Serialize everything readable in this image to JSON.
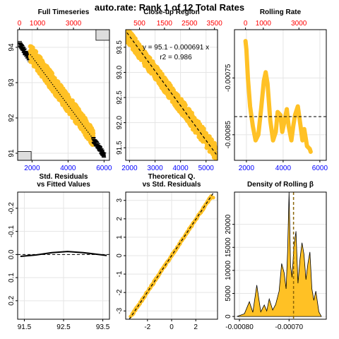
{
  "main_title": "auto.rate: Rank 1 of 12 Total Rates",
  "colors": {
    "points": "#FFC125",
    "fit_line": "#000000",
    "grid": "#E5E5E5",
    "top_axis": "#FF0000",
    "bottom_axis": "#0000FF",
    "gray_box": "#DDDDDD"
  },
  "chart_data": [
    {
      "id": "full_timeseries",
      "type": "scatter",
      "title": "Full Timeseries",
      "xlim": [
        1200,
        6300
      ],
      "ylim": [
        90.8,
        94.5
      ],
      "x_ticks": [
        2000,
        4000,
        6000
      ],
      "x_tick_labels": [
        "2000",
        "4000",
        "6000"
      ],
      "top_ticks": [
        0,
        1000,
        3000
      ],
      "top_tick_labels": [
        "0",
        "1000",
        "3000"
      ],
      "y_ticks": [
        91,
        92,
        93,
        94
      ],
      "y_tick_labels": [
        "91",
        "92",
        "93",
        "94"
      ],
      "series": [
        {
          "x_start": 1300,
          "x_end": 1900,
          "y_start": 94.1,
          "y_end": 93.65,
          "noise": 0.08,
          "style": "black-dashes"
        },
        {
          "x_start": 1900,
          "x_end": 5400,
          "y_start": 93.85,
          "y_end": 91.45,
          "noise": 0.25,
          "style": "orange-points"
        },
        {
          "x_start": 5400,
          "x_end": 6000,
          "y_start": 91.4,
          "y_end": 90.95,
          "noise": 0.08,
          "style": "black-dashes"
        }
      ],
      "fit_line": {
        "x": [
          1900,
          5400
        ],
        "y": [
          93.8,
          91.4
        ],
        "style": "dotted"
      },
      "gray_boxes": [
        {
          "corner": "top-right",
          "x": [
            5550,
            6300
          ],
          "y": [
            94.2,
            94.5
          ]
        },
        {
          "corner": "bottom-left",
          "x": [
            1200,
            1950
          ],
          "y": [
            90.8,
            91.05
          ]
        }
      ]
    },
    {
      "id": "closeup_region",
      "type": "scatter",
      "title": "Close-up Region",
      "xlim": [
        1850,
        5450
      ],
      "ylim": [
        91.25,
        93.85
      ],
      "x_ticks": [
        2000,
        3000,
        4000,
        5000
      ],
      "x_tick_labels": [
        "2000",
        "3000",
        "4000",
        "5000"
      ],
      "top_ticks": [
        500,
        1500,
        2500,
        3500
      ],
      "top_tick_labels": [
        "500",
        "1500",
        "2500",
        "3500"
      ],
      "y_ticks": [
        91.5,
        92.0,
        92.5,
        93.0,
        93.5
      ],
      "y_tick_labels": [
        "91.5",
        "92.0",
        "92.5",
        "93.0",
        "93.5"
      ],
      "series": [
        {
          "x_start": 1900,
          "x_end": 5400,
          "y_start": 93.75,
          "y_end": 91.4,
          "noise": 0.15,
          "style": "orange-points"
        }
      ],
      "fit_line": {
        "x": [
          1900,
          5400
        ],
        "y": [
          93.79,
          91.37
        ],
        "style": "dashed"
      },
      "annotations": [
        "y = 95.1 - 0.000691 x",
        "r2 = 0.986"
      ]
    },
    {
      "id": "rolling_rate",
      "type": "line",
      "title": "Rolling Rate",
      "xlim": [
        1350,
        6350
      ],
      "ylim": [
        -0.000895,
        -0.000665
      ],
      "x_ticks": [
        2000,
        4000,
        6000
      ],
      "x_tick_labels": [
        "2000",
        "4000",
        "6000"
      ],
      "top_ticks": [
        0,
        1000,
        3000
      ],
      "top_tick_labels": [
        "0",
        "1000",
        "3000"
      ],
      "y_ticks": [
        -0.00085,
        -0.00075
      ],
      "y_tick_labels": [
        "-0.00085",
        "-0.00075"
      ],
      "series": [
        {
          "x": [
            1950,
            2000,
            2080,
            2200,
            2350,
            2500,
            2650,
            2800,
            2950,
            3050,
            3150,
            3300,
            3450,
            3600,
            3700,
            3850,
            3950,
            4050,
            4200,
            4300,
            4450,
            4550,
            4650,
            4800,
            4950,
            5050,
            5150,
            5300,
            5450,
            5500
          ],
          "y": [
            -0.000685,
            -0.0007,
            -0.00075,
            -0.0008,
            -0.000835,
            -0.00086,
            -0.00085,
            -0.000805,
            -0.000755,
            -0.00074,
            -0.00076,
            -0.000825,
            -0.00086,
            -0.000845,
            -0.00081,
            -0.000815,
            -0.000845,
            -0.00083,
            -0.000805,
            -0.000835,
            -0.00086,
            -0.000835,
            -0.000815,
            -0.0008,
            -0.000835,
            -0.00086,
            -0.00084,
            -0.00087,
            -0.000875,
            -0.00088
          ]
        }
      ],
      "hline": -0.000818
    },
    {
      "id": "std_residuals_vs_fitted",
      "type": "scatter",
      "title": "Std. Residuals\nvs Fitted Values",
      "xlim": [
        91.33,
        93.67
      ],
      "ylim": [
        0.28,
        -0.27
      ],
      "x_ticks": [
        91.5,
        92.5,
        93.5
      ],
      "x_tick_labels": [
        "91.5",
        "92.5",
        "93.5"
      ],
      "y_ticks": [
        -0.2,
        -0.1,
        0.0,
        0.1,
        0.2
      ],
      "y_tick_labels": [
        "-0.2",
        "-0.1",
        "0.0",
        "0.1",
        "0.2"
      ],
      "series": [
        {
          "x_start": 91.4,
          "x_end": 93.6,
          "y_center": 0.0,
          "spread": 0.26,
          "style": "orange-points"
        }
      ],
      "fit_line": {
        "x": [
          91.4,
          91.8,
          92.2,
          92.6,
          93.0,
          93.4,
          93.6
        ],
        "y": [
          0.008,
          0.002,
          -0.008,
          -0.013,
          -0.008,
          0.0,
          0.004
        ],
        "style": "solid"
      },
      "hline": 0.0
    },
    {
      "id": "qq_plot",
      "type": "scatter",
      "title": "Theoretical Q.\nvs Std. Residuals",
      "xlim": [
        -3.8,
        3.8
      ],
      "ylim": [
        -3.45,
        3.45
      ],
      "x_ticks": [
        -2,
        0,
        2
      ],
      "x_tick_labels": [
        "-2",
        "0",
        "2"
      ],
      "y_ticks": [
        -3,
        -2,
        -1,
        0,
        1,
        2,
        3
      ],
      "y_tick_labels": [
        "-3",
        "-2",
        "-1",
        "0",
        "1",
        "2",
        "3"
      ],
      "series": [
        {
          "x_start": -3.5,
          "x_end": 3.5,
          "style": "qq-orange-points"
        }
      ],
      "fit_line": {
        "x": [
          -3.5,
          3.5
        ],
        "y": [
          -3.45,
          3.45
        ],
        "style": "dashed"
      }
    },
    {
      "id": "density_rolling_beta",
      "type": "area",
      "title": "Density of Rolling β",
      "xlim": [
        -0.00081,
        -0.000625
      ],
      "ylim": [
        -600,
        27000
      ],
      "x_ticks": [
        -0.0008,
        -0.0007
      ],
      "x_tick_labels": [
        "-0.00080",
        "-0.00070"
      ],
      "y_ticks": [
        0,
        5000,
        10000,
        15000,
        20000
      ],
      "y_tick_labels": [
        "0",
        "5000",
        "10000",
        "15000",
        "20000"
      ],
      "series": [
        {
          "x": [
            -0.000805,
            -0.00079,
            -0.00078,
            -0.000773,
            -0.000765,
            -0.000757,
            -0.00075,
            -0.000745,
            -0.00074,
            -0.000733,
            -0.000727,
            -0.00072,
            -0.000715,
            -0.00071,
            -0.000706,
            -0.000703,
            -0.0007,
            -0.000697,
            -0.000694,
            -0.00069,
            -0.000686,
            -0.000682,
            -0.000678,
            -0.000674,
            -0.00067,
            -0.000666,
            -0.000662,
            -0.000658,
            -0.000654,
            -0.00065,
            -0.000646,
            -0.00064,
            -0.000635
          ],
          "y": [
            0,
            600,
            3200,
            900,
            6800,
            1000,
            2500,
            1200,
            3800,
            1400,
            2600,
            5500,
            11500,
            9500,
            6000,
            14000,
            27000,
            11000,
            8500,
            15500,
            18500,
            7200,
            12500,
            16000,
            13500,
            8000,
            11500,
            14000,
            6000,
            3500,
            5500,
            1000,
            0
          ]
        }
      ],
      "vline": -0.000691
    }
  ]
}
